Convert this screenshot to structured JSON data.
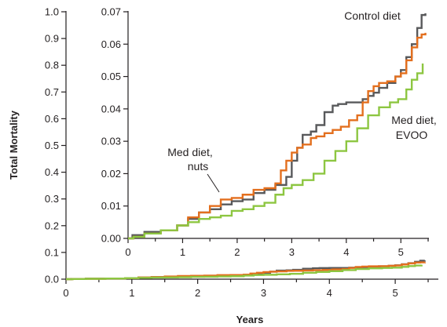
{
  "chart_data": {
    "type": "line",
    "ylabel": "Total Mortality",
    "xlabel": "Years",
    "main": {
      "xlim": [
        0,
        5.5
      ],
      "ylim": [
        0,
        1.0
      ],
      "xticks": [
        0,
        1,
        2,
        3,
        4,
        5
      ],
      "xtick_labels": [
        "0",
        "1",
        "2",
        "3",
        "4",
        "5"
      ],
      "yticks": [
        0,
        0.1,
        0.2,
        0.3,
        0.4,
        0.5,
        0.6,
        0.7,
        0.8,
        0.9,
        1.0
      ],
      "ytick_labels": [
        "0.0",
        "0.1",
        "0.2",
        "0.3",
        "0.4",
        "0.5",
        "0.6",
        "0.7",
        "0.8",
        "0.9",
        "1.0"
      ]
    },
    "inset": {
      "xlim": [
        0,
        5.5
      ],
      "ylim": [
        0,
        0.07
      ],
      "xticks": [
        0,
        1,
        2,
        3,
        4,
        5
      ],
      "xtick_labels": [
        "0",
        "1",
        "2",
        "3",
        "4",
        "5"
      ],
      "yticks": [
        0,
        0.01,
        0.02,
        0.03,
        0.04,
        0.05,
        0.06,
        0.07
      ],
      "ytick_labels": [
        "0.00",
        "0.01",
        "0.02",
        "0.03",
        "0.04",
        "0.05",
        "0.06",
        "0.07"
      ]
    },
    "series": [
      {
        "name": "Control diet",
        "color": "#58595b",
        "points": [
          [
            0,
            0
          ],
          [
            0.08,
            0.001
          ],
          [
            0.3,
            0.002
          ],
          [
            0.6,
            0.0025
          ],
          [
            0.9,
            0.004
          ],
          [
            1.1,
            0.006
          ],
          [
            1.3,
            0.008
          ],
          [
            1.5,
            0.009
          ],
          [
            1.7,
            0.0105
          ],
          [
            1.9,
            0.0115
          ],
          [
            2.1,
            0.012
          ],
          [
            2.3,
            0.014
          ],
          [
            2.5,
            0.015
          ],
          [
            2.7,
            0.0165
          ],
          [
            2.9,
            0.019
          ],
          [
            3.0,
            0.024
          ],
          [
            3.1,
            0.028
          ],
          [
            3.2,
            0.032
          ],
          [
            3.35,
            0.033
          ],
          [
            3.45,
            0.035
          ],
          [
            3.6,
            0.039
          ],
          [
            3.75,
            0.041
          ],
          [
            3.85,
            0.0415
          ],
          [
            4.0,
            0.042
          ],
          [
            4.15,
            0.042
          ],
          [
            4.3,
            0.043
          ],
          [
            4.4,
            0.044
          ],
          [
            4.5,
            0.045
          ],
          [
            4.6,
            0.0465
          ],
          [
            4.75,
            0.048
          ],
          [
            4.9,
            0.05
          ],
          [
            5.0,
            0.052
          ],
          [
            5.1,
            0.056
          ],
          [
            5.2,
            0.06
          ],
          [
            5.3,
            0.065
          ],
          [
            5.38,
            0.069
          ],
          [
            5.45,
            0.0695
          ]
        ]
      },
      {
        "name": "Med diet, nuts",
        "color": "#e36f1e",
        "points": [
          [
            0,
            0
          ],
          [
            0.1,
            0.0005
          ],
          [
            0.3,
            0.0015
          ],
          [
            0.6,
            0.0025
          ],
          [
            0.9,
            0.004
          ],
          [
            1.1,
            0.0065
          ],
          [
            1.3,
            0.008
          ],
          [
            1.5,
            0.01
          ],
          [
            1.7,
            0.012
          ],
          [
            1.9,
            0.0125
          ],
          [
            2.1,
            0.0135
          ],
          [
            2.3,
            0.015
          ],
          [
            2.5,
            0.0155
          ],
          [
            2.7,
            0.017
          ],
          [
            2.8,
            0.021
          ],
          [
            2.9,
            0.024
          ],
          [
            3.0,
            0.0265
          ],
          [
            3.1,
            0.028
          ],
          [
            3.2,
            0.029
          ],
          [
            3.35,
            0.031
          ],
          [
            3.45,
            0.0315
          ],
          [
            3.6,
            0.0325
          ],
          [
            3.75,
            0.0335
          ],
          [
            3.9,
            0.0345
          ],
          [
            4.05,
            0.0365
          ],
          [
            4.2,
            0.038
          ],
          [
            4.3,
            0.042
          ],
          [
            4.4,
            0.0455
          ],
          [
            4.5,
            0.047
          ],
          [
            4.6,
            0.048
          ],
          [
            4.75,
            0.0485
          ],
          [
            4.9,
            0.05
          ],
          [
            5.0,
            0.051
          ],
          [
            5.1,
            0.055
          ],
          [
            5.2,
            0.059
          ],
          [
            5.3,
            0.062
          ],
          [
            5.38,
            0.063
          ],
          [
            5.45,
            0.0635
          ]
        ]
      },
      {
        "name": "Med diet, EVOO",
        "color": "#8dc641",
        "points": [
          [
            0,
            0
          ],
          [
            0.1,
            0.0005
          ],
          [
            0.3,
            0.0015
          ],
          [
            0.6,
            0.0025
          ],
          [
            0.9,
            0.004
          ],
          [
            1.1,
            0.005
          ],
          [
            1.3,
            0.006
          ],
          [
            1.5,
            0.0065
          ],
          [
            1.7,
            0.007
          ],
          [
            1.9,
            0.0085
          ],
          [
            2.1,
            0.009
          ],
          [
            2.3,
            0.01
          ],
          [
            2.5,
            0.011
          ],
          [
            2.7,
            0.0135
          ],
          [
            2.85,
            0.0155
          ],
          [
            3.0,
            0.0165
          ],
          [
            3.2,
            0.018
          ],
          [
            3.4,
            0.02
          ],
          [
            3.6,
            0.024
          ],
          [
            3.8,
            0.027
          ],
          [
            4.0,
            0.03
          ],
          [
            4.2,
            0.034
          ],
          [
            4.4,
            0.038
          ],
          [
            4.6,
            0.0405
          ],
          [
            4.8,
            0.042
          ],
          [
            4.95,
            0.043
          ],
          [
            5.1,
            0.046
          ],
          [
            5.2,
            0.049
          ],
          [
            5.3,
            0.051
          ],
          [
            5.4,
            0.054
          ]
        ]
      }
    ],
    "labels": {
      "control": "Control diet",
      "nuts_line1": "Med diet,",
      "nuts_line2": "nuts",
      "evoo_line1": "Med diet,",
      "evoo_line2": "EVOO"
    }
  }
}
